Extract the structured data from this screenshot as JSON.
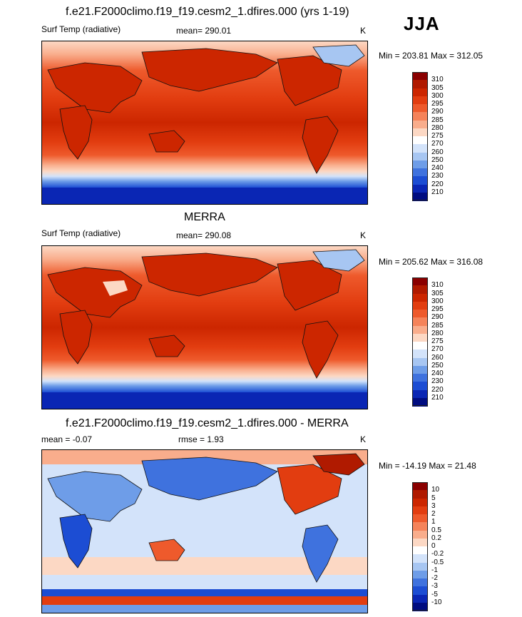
{
  "season": "JJA",
  "panels": [
    {
      "title": "f.e21.F2000climo.f19_f19.cesm2_1.dfires.000 (yrs 1-19)",
      "variable": "Surf Temp (radiative)",
      "stat_left": "",
      "mean_text": "mean= 290.01",
      "units": "K",
      "minmax": "Min = 203.81 Max = 312.05",
      "scale": "temp"
    },
    {
      "title": "MERRA",
      "variable": "Surf Temp (radiative)",
      "stat_left": "",
      "mean_text": "mean= 290.08",
      "units": "K",
      "minmax": "Min = 205.62 Max = 316.08",
      "scale": "temp"
    },
    {
      "title": "f.e21.F2000climo.f19_f19.cesm2_1.dfires.000 - MERRA",
      "variable": "",
      "stat_left": "mean =  -0.07",
      "mean_text": "rmse =   1.93",
      "units": "K",
      "minmax": "Min = -14.19 Max =  21.48",
      "scale": "diff"
    }
  ],
  "colorbars": {
    "temp": {
      "labels": [
        "310",
        "305",
        "300",
        "295",
        "290",
        "285",
        "280",
        "275",
        "270",
        "260",
        "250",
        "240",
        "230",
        "220",
        "210"
      ],
      "colors": [
        "#8a0000",
        "#b01a00",
        "#cc2600",
        "#e23d10",
        "#ee5a2c",
        "#f5835a",
        "#f9ad8c",
        "#fcd8c4",
        "#ffffff",
        "#d3e3fa",
        "#a7c6f2",
        "#6e9de8",
        "#3f72de",
        "#1c4dd3",
        "#0a26b4",
        "#000c80"
      ]
    },
    "diff": {
      "labels": [
        "10",
        "5",
        "3",
        "2",
        "1",
        "0.5",
        "0.2",
        "0",
        "-0.2",
        "-0.5",
        "-1",
        "-2",
        "-3",
        "-5",
        "-10"
      ],
      "colors": [
        "#8a0000",
        "#b01a00",
        "#cc2600",
        "#e23d10",
        "#ee5a2c",
        "#f5835a",
        "#f9ad8c",
        "#fcd8c4",
        "#ffffff",
        "#d3e3fa",
        "#a7c6f2",
        "#6e9de8",
        "#3f72de",
        "#1c4dd3",
        "#0a26b4",
        "#000c80"
      ]
    }
  }
}
